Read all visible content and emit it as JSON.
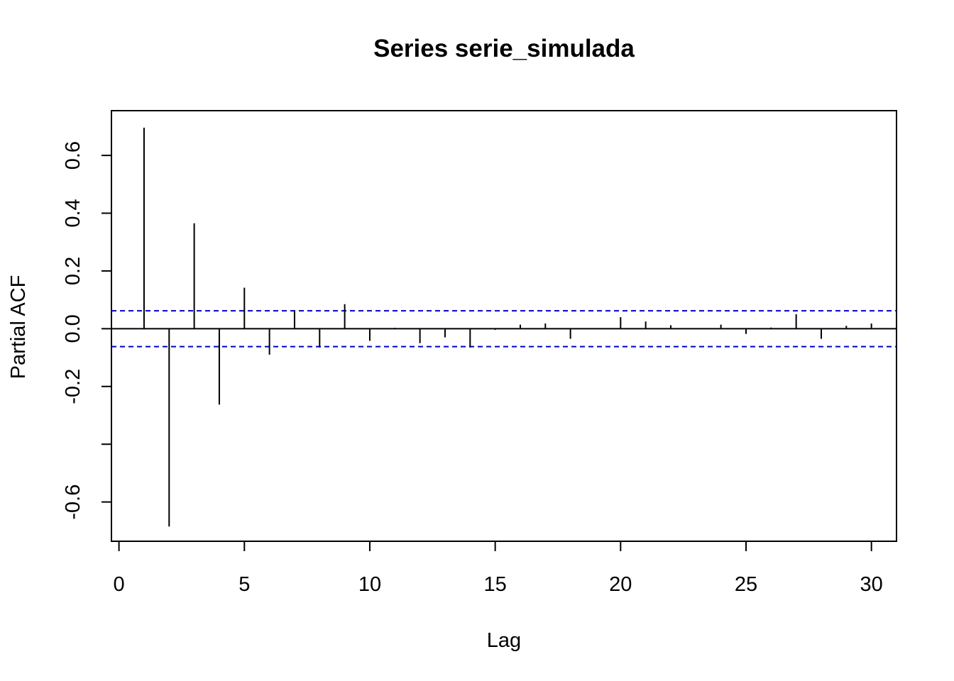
{
  "chart_data": {
    "type": "bar",
    "title": "Series  serie_simulada",
    "xlabel": "Lag",
    "ylabel": "Partial ACF",
    "xlim": [
      -0.3,
      31.0
    ],
    "ylim": [
      -0.736,
      0.755
    ],
    "x_ticks": [
      0,
      5,
      10,
      15,
      20,
      25,
      30
    ],
    "x_tick_labels": [
      "0",
      "5",
      "10",
      "15",
      "20",
      "25",
      "30"
    ],
    "y_ticks": [
      -0.6,
      -0.4,
      -0.2,
      0.0,
      0.2,
      0.4,
      0.6
    ],
    "y_tick_labels": [
      "-0.6",
      "",
      "-0.2",
      "0.0",
      "0.2",
      "0.4",
      "0.6"
    ],
    "confidence_bound": 0.062,
    "confidence_color": "#0000cc",
    "series": [
      {
        "lags": [
          1,
          2,
          3,
          4,
          5,
          6,
          7,
          8,
          9,
          10,
          11,
          12,
          13,
          14,
          15,
          16,
          17,
          18,
          19,
          20,
          21,
          22,
          23,
          24,
          25,
          26,
          27,
          28,
          29,
          30
        ],
        "values": [
          0.696,
          -0.685,
          0.365,
          -0.263,
          0.142,
          -0.09,
          0.063,
          -0.065,
          0.085,
          -0.042,
          0.003,
          -0.05,
          -0.03,
          -0.065,
          -0.004,
          0.014,
          0.018,
          -0.035,
          0.0,
          0.04,
          0.025,
          0.012,
          0.0,
          0.014,
          -0.018,
          0.004,
          0.05,
          -0.035,
          0.01,
          0.018
        ]
      }
    ]
  }
}
